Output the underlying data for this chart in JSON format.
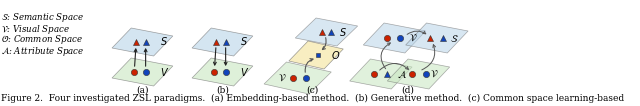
{
  "caption": "Figure 2.  Four investigated ZSL paradigms.  (a) Embedding-based method.  (b) Generative method.  (c) Common space learning-based",
  "background": "#ffffff",
  "plane_blue": "#b8d4e8",
  "plane_green": "#c8e6c0",
  "plane_yellow": "#f5e6a0",
  "red": "#cc2200",
  "blue": "#1144bb",
  "gray": "#555555",
  "legend": [
    [
      "S",
      "Semantic Space"
    ],
    [
      "V",
      "Visual Space"
    ],
    [
      "O",
      "Common Space"
    ],
    [
      "A",
      "Attribute Space"
    ]
  ]
}
